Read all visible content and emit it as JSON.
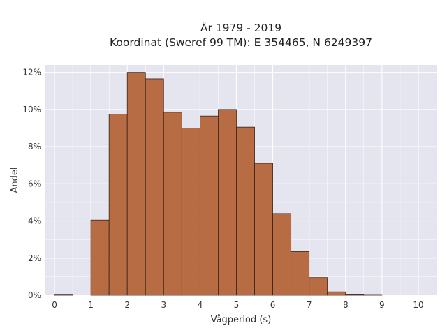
{
  "chart_data": {
    "type": "bar",
    "title_lines": [
      "År 1979 - 2019",
      "Koordinat (Sweref 99 TM): E 354465, N 6249397"
    ],
    "xlabel": "Vågperiod (s)",
    "ylabel": "Andel",
    "xlim": [
      -0.25,
      10.5
    ],
    "ylim": [
      0,
      12.4
    ],
    "x_ticks": [
      0,
      1,
      2,
      3,
      4,
      5,
      6,
      7,
      8,
      9,
      10
    ],
    "x_tick_labels": [
      "0",
      "1",
      "2",
      "3",
      "4",
      "5",
      "6",
      "7",
      "8",
      "9",
      "10"
    ],
    "y_ticks": [
      0,
      2,
      4,
      6,
      8,
      10,
      12
    ],
    "y_tick_labels": [
      "0%",
      "2%",
      "4%",
      "6%",
      "8%",
      "10%",
      "12%"
    ],
    "bin_width": 0.5,
    "bins_start": [
      0,
      0.5,
      1,
      1.5,
      2,
      2.5,
      3,
      3.5,
      4,
      4.5,
      5,
      5.5,
      6,
      6.5,
      7,
      7.5,
      8,
      8.5,
      9,
      9.5
    ],
    "values": [
      0.05,
      0,
      4.05,
      9.75,
      12.0,
      11.65,
      9.85,
      9.0,
      9.65,
      10.0,
      9.05,
      7.1,
      4.4,
      2.35,
      0.95,
      0.18,
      0.06,
      0.02,
      0,
      0
    ],
    "grid": true,
    "colors": {
      "bar_fill": "#b5653a",
      "bar_edge": "#3a2418",
      "plot_bg": "#e5e5ef",
      "grid": "#ffffff"
    }
  }
}
